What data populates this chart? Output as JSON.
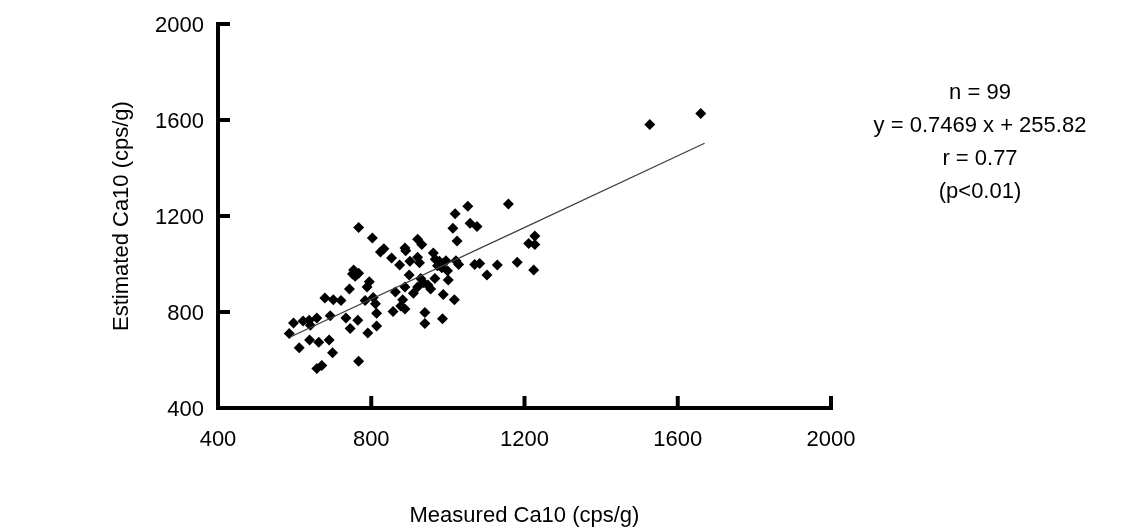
{
  "chart_data": {
    "type": "scatter",
    "xlabel": "Measured Ca10 (cps/g)",
    "ylabel": "Estimated Ca10 (cps/g)",
    "xlim": [
      400,
      2000
    ],
    "xticks": [
      400,
      800,
      1200,
      1600,
      2000
    ],
    "ylim": [
      400,
      2000
    ],
    "yticks": [
      400,
      800,
      1200,
      1600,
      2000
    ],
    "grid": false,
    "marker": "diamond",
    "annotations": [
      "n = 99",
      "y = 0.7469 x + 255.82",
      "r = 0.77",
      "(p<0.01)"
    ],
    "series": [
      {
        "color": "#000000",
        "x": [
          586,
          597,
          612,
          622,
          638,
          641,
          658,
          639,
          663,
          658,
          671,
          690,
          699,
          693,
          679,
          701,
          721,
          734,
          743,
          745,
          754,
          751,
          758,
          767,
          765,
          767,
          767,
          784,
          789,
          795,
          791,
          805,
          811,
          814,
          814,
          803,
          824,
          833,
          853,
          857,
          863,
          874,
          877,
          882,
          888,
          888,
          890,
          888,
          899,
          901,
          910,
          921,
          921,
          926,
          932,
          921,
          929,
          937,
          940,
          940,
          948,
          955,
          962,
          966,
          973,
          978,
          984,
          986,
          988,
          995,
          999,
          1001,
          1013,
          1017,
          1021,
          1024,
          1028,
          1019,
          1052,
          1058,
          1076,
          1070,
          1083,
          1102,
          1129,
          1158,
          1181,
          1211,
          1227,
          1227,
          1224,
          1527,
          1660,
          967,
          984
        ],
        "values": [
          710,
          754,
          651,
          763,
          766,
          745,
          775,
          683,
          674,
          565,
          577,
          683,
          630,
          784,
          858,
          851,
          848,
          775,
          896,
          731,
          975,
          958,
          949,
          961,
          766,
          595,
          1152,
          848,
          904,
          926,
          713,
          860,
          834,
          795,
          742,
          1108,
          1050,
          1064,
          1025,
          802,
          883,
          996,
          825,
          851,
          812,
          904,
          1055,
          1067,
          954,
          1011,
          878,
          1028,
          1103,
          1005,
          1081,
          904,
          940,
          922,
          798,
          752,
          913,
          896,
          1046,
          940,
          993,
          1011,
          984,
          772,
          873,
          1014,
          972,
          933,
          1149,
          851,
          1014,
          1096,
          998,
          1209,
          1241,
          1170,
          1156,
          998,
          1002,
          954,
          996,
          1250,
          1007,
          1085,
          1117,
          1081,
          975,
          1581,
          1627,
          1020,
          1002
        ]
      },
      {
        "type": "line",
        "color": "#404040",
        "marker": "none",
        "line_style": "solid",
        "x": [
          590,
          1670
        ],
        "values": [
          697,
          1503
        ]
      }
    ]
  }
}
